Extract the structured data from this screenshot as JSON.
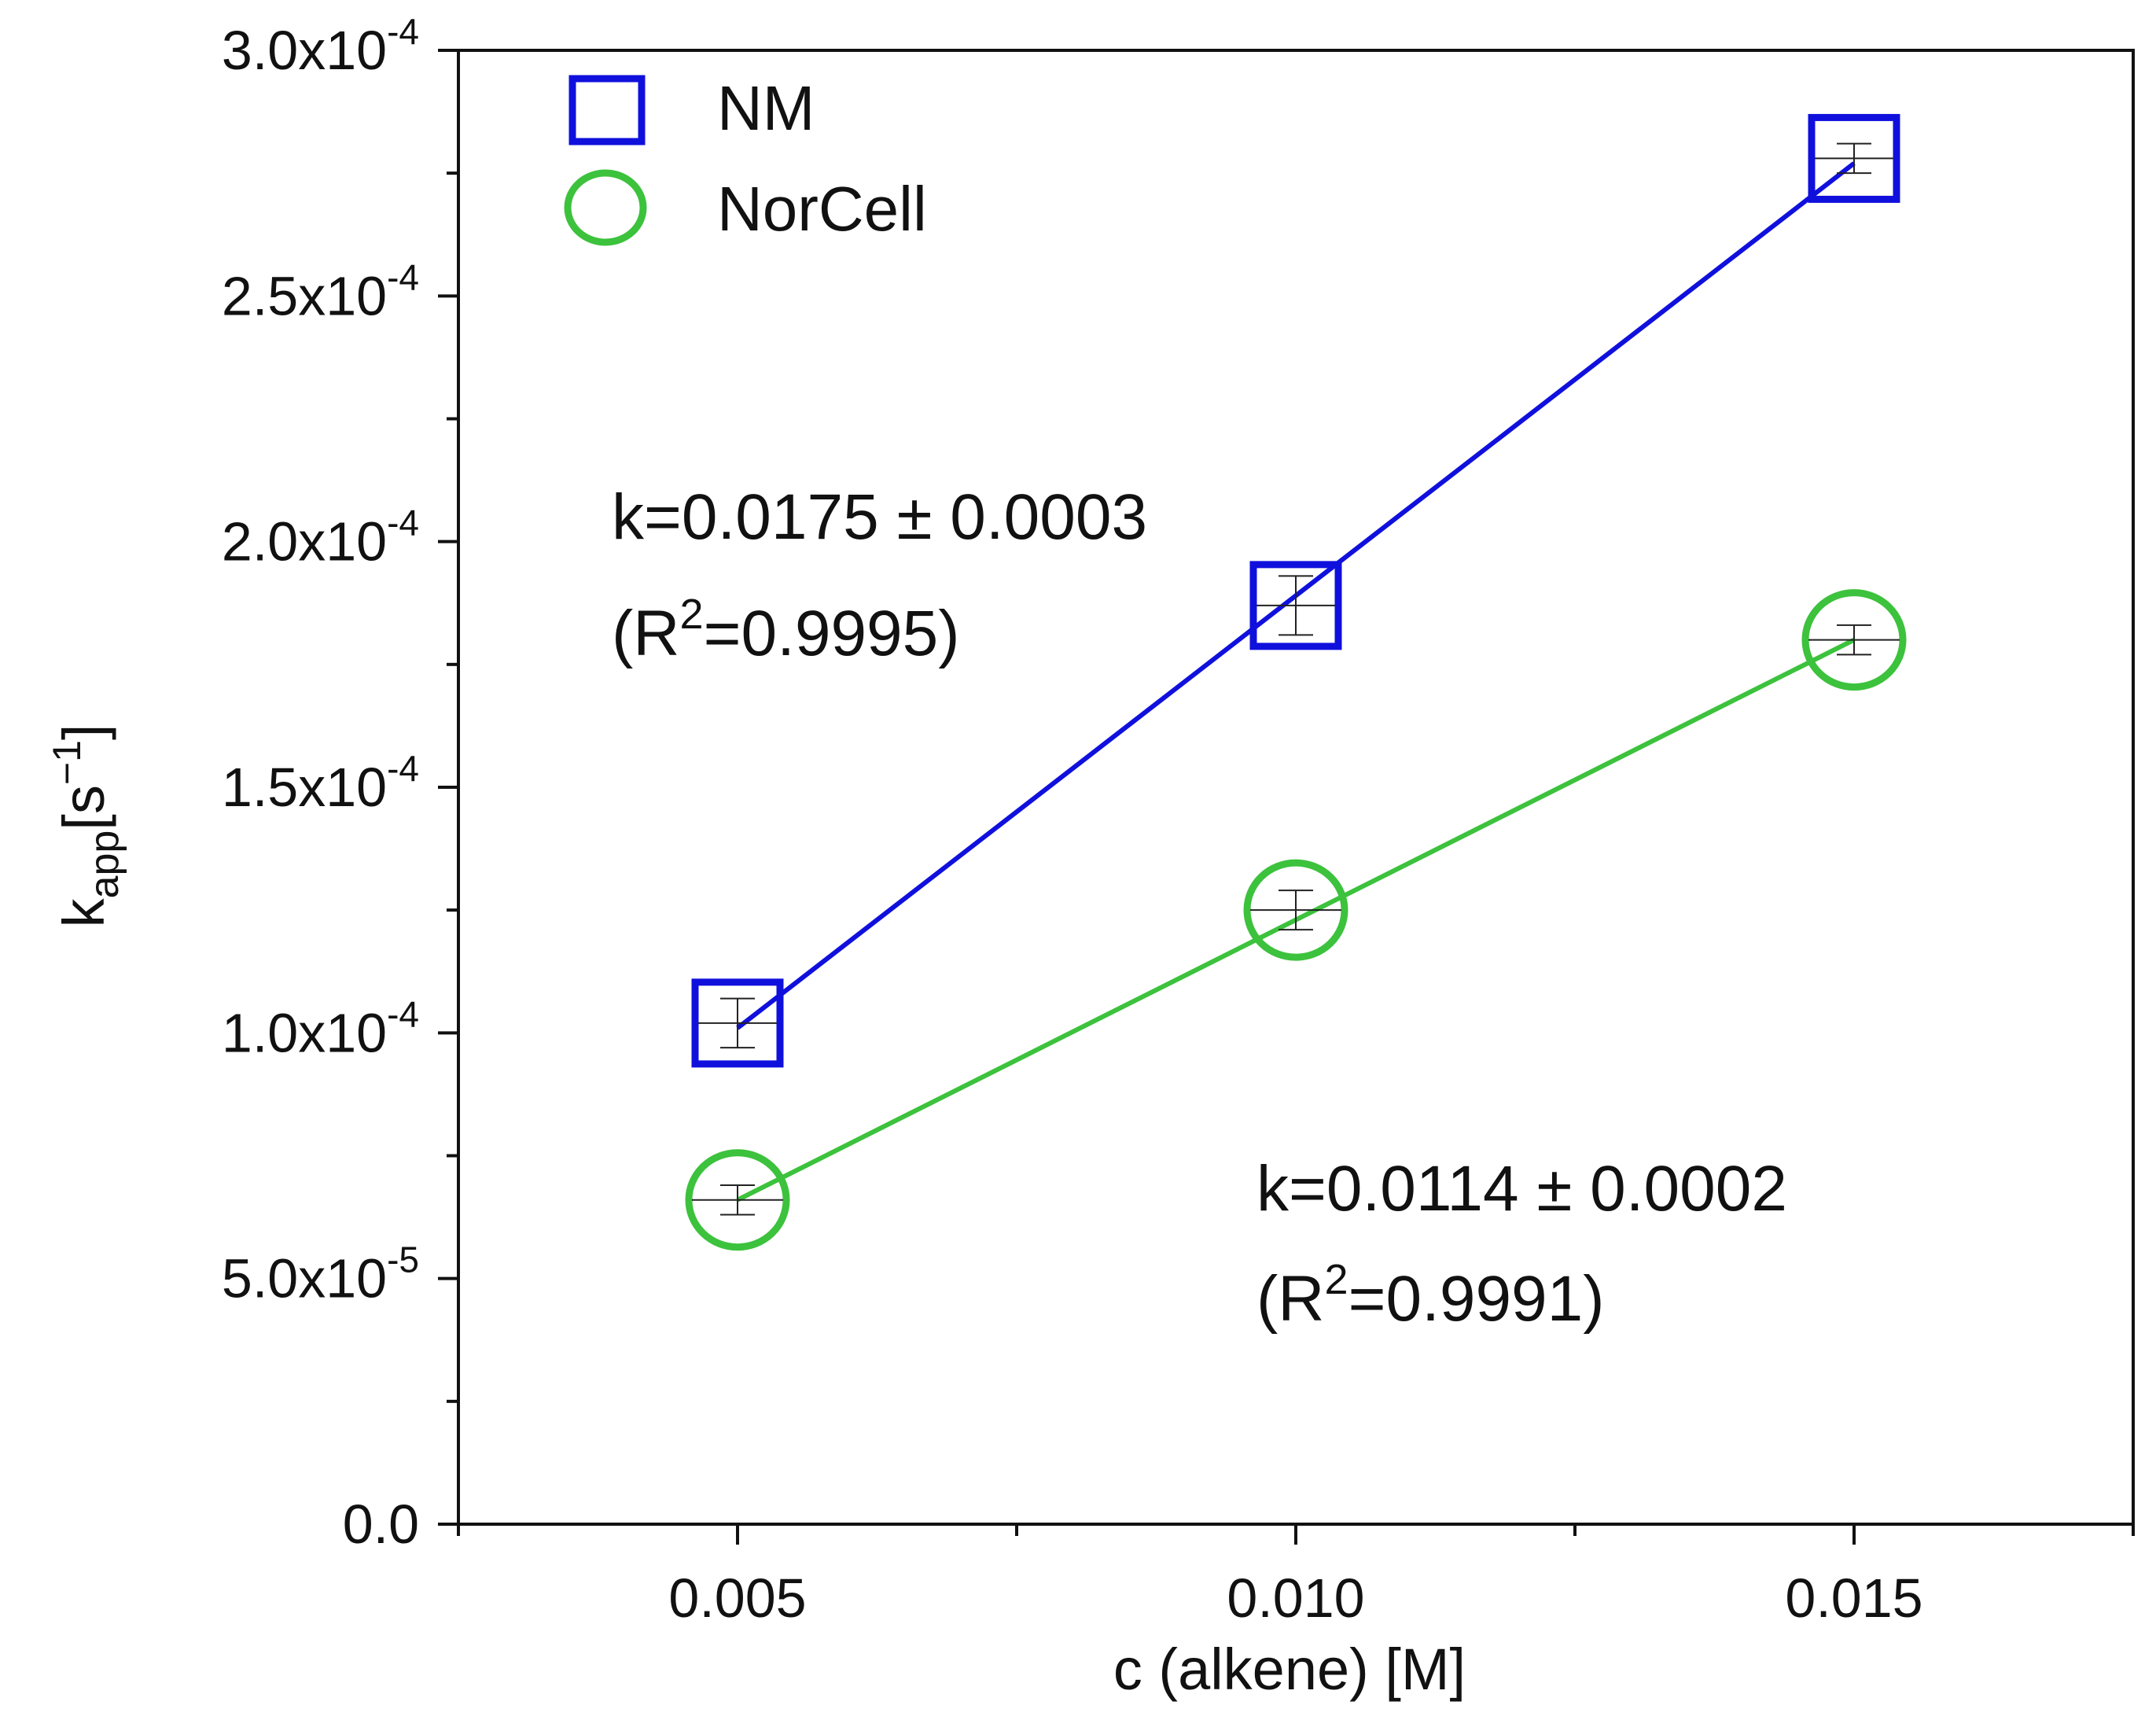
{
  "chart_data": {
    "type": "scatter",
    "title": "",
    "xlabel": "c (alkene) [M]",
    "ylabel": {
      "base": "k",
      "sub": "app",
      "unit_open": "[s",
      "unit_sup": "−1",
      "unit_close": "]"
    },
    "xlim": [
      0.0025,
      0.0175
    ],
    "ylim": [
      0,
      0.0003
    ],
    "x_ticks": [
      {
        "value": 0.005,
        "label": "0.005"
      },
      {
        "value": 0.01,
        "label": "0.010"
      },
      {
        "value": 0.015,
        "label": "0.015"
      }
    ],
    "x_minor_ticks": [
      0.0025,
      0.0075,
      0.0125,
      0.0175
    ],
    "y_ticks": [
      {
        "value": 0,
        "mant": "0.0",
        "exp": ""
      },
      {
        "value": 5e-05,
        "mant": "5.0x10",
        "exp": "-5"
      },
      {
        "value": 0.0001,
        "mant": "1.0x10",
        "exp": "-4"
      },
      {
        "value": 0.00015,
        "mant": "1.5x10",
        "exp": "-4"
      },
      {
        "value": 0.0002,
        "mant": "2.0x10",
        "exp": "-4"
      },
      {
        "value": 0.00025,
        "mant": "2.5x10",
        "exp": "-4"
      },
      {
        "value": 0.0003,
        "mant": "3.0x10",
        "exp": "-4"
      }
    ],
    "y_minor_ticks": [
      2.5e-05,
      7.5e-05,
      0.000125,
      0.000175,
      0.000225,
      0.000275
    ],
    "grid": false,
    "legend_position": "top-left",
    "series": [
      {
        "name": "NM",
        "marker": "square",
        "color": "#1010dd",
        "x": [
          0.005,
          0.01,
          0.015
        ],
        "y": [
          0.000102,
          0.000187,
          0.000278
        ],
        "err": [
          5e-06,
          6e-06,
          3e-06
        ],
        "fit": {
          "x": [
            0.005,
            0.015
          ],
          "y": [
            0.000101,
            0.000277
          ]
        }
      },
      {
        "name": "NorCell",
        "marker": "circle",
        "color": "#3cc23c",
        "x": [
          0.005,
          0.01,
          0.015
        ],
        "y": [
          6.6e-05,
          0.000125,
          0.00018
        ],
        "err": [
          3e-06,
          4e-06,
          3e-06
        ],
        "fit": {
          "x": [
            0.005,
            0.015
          ],
          "y": [
            6.6e-05,
            0.00018
          ]
        }
      }
    ],
    "annotations": [
      {
        "series": "NM",
        "line1": "k=0.0175 ± 0.0003",
        "r2_open": "(R",
        "r2_sup": "2",
        "r2_rest": "=0.9995)"
      },
      {
        "series": "NorCell",
        "line1": "k=0.0114 ± 0.0002",
        "r2_open": "(R",
        "r2_sup": "2",
        "r2_rest": "=0.9991)"
      }
    ]
  }
}
